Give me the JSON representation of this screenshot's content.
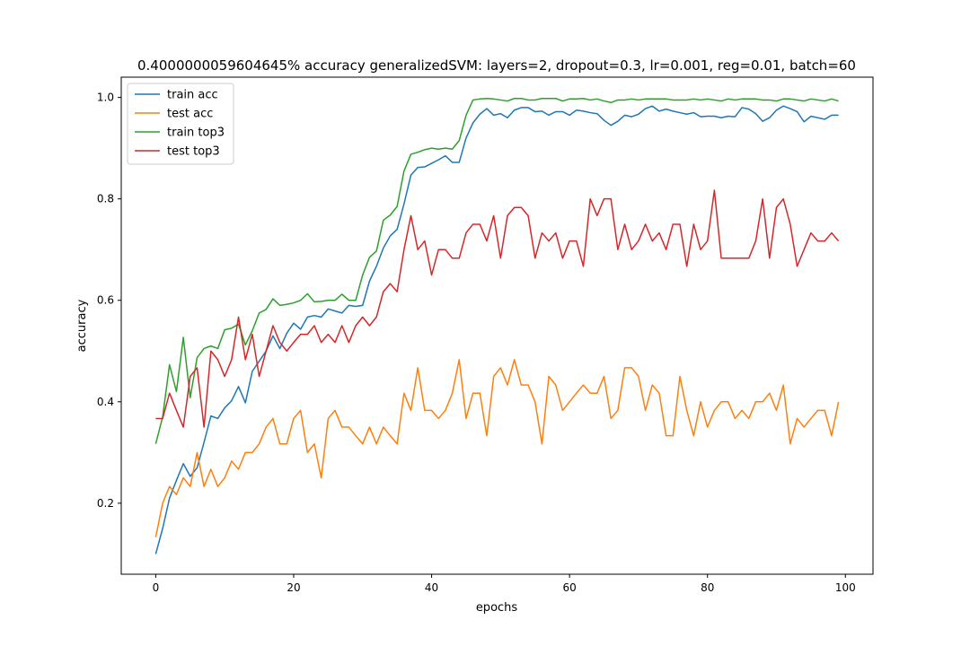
{
  "chart_data": {
    "type": "line",
    "title": "0.4000000059604645% accuracy generalizedSVM: layers=2, dropout=0.3, lr=0.001, reg=0.01, batch=60",
    "xlabel": "epochs",
    "ylabel": "accuracy",
    "xlim": [
      -5,
      104
    ],
    "ylim": [
      0.06,
      1.04
    ],
    "xticks": [
      0,
      20,
      40,
      60,
      80,
      100
    ],
    "yticks": [
      0.2,
      0.4,
      0.6,
      0.8,
      1.0
    ],
    "xtick_labels": [
      "0",
      "20",
      "40",
      "60",
      "80",
      "100"
    ],
    "ytick_labels": [
      "0.2",
      "0.4",
      "0.6",
      "0.8",
      "1.0"
    ],
    "grid": false,
    "legend_position": "top-left",
    "series": [
      {
        "name": "train acc",
        "color": "#1f77b4",
        "values": [
          0.1,
          0.15,
          0.21,
          0.245,
          0.278,
          0.253,
          0.27,
          0.32,
          0.372,
          0.367,
          0.388,
          0.402,
          0.43,
          0.398,
          0.46,
          0.48,
          0.5,
          0.53,
          0.505,
          0.535,
          0.555,
          0.543,
          0.567,
          0.57,
          0.567,
          0.583,
          0.579,
          0.575,
          0.59,
          0.588,
          0.59,
          0.638,
          0.667,
          0.703,
          0.727,
          0.74,
          0.79,
          0.847,
          0.862,
          0.863,
          0.87,
          0.877,
          0.885,
          0.872,
          0.872,
          0.92,
          0.95,
          0.967,
          0.978,
          0.965,
          0.968,
          0.96,
          0.975,
          0.98,
          0.98,
          0.972,
          0.973,
          0.965,
          0.972,
          0.972,
          0.965,
          0.975,
          0.973,
          0.97,
          0.968,
          0.955,
          0.945,
          0.953,
          0.965,
          0.962,
          0.967,
          0.978,
          0.983,
          0.973,
          0.977,
          0.973,
          0.97,
          0.967,
          0.97,
          0.962,
          0.963,
          0.963,
          0.96,
          0.963,
          0.962,
          0.98,
          0.977,
          0.968,
          0.953,
          0.96,
          0.975,
          0.983,
          0.978,
          0.972,
          0.952,
          0.963,
          0.96,
          0.957,
          0.965,
          0.965
        ]
      },
      {
        "name": "test acc",
        "color": "#ff7f0e",
        "values": [
          0.133,
          0.2,
          0.233,
          0.217,
          0.25,
          0.233,
          0.3,
          0.233,
          0.267,
          0.233,
          0.25,
          0.283,
          0.267,
          0.3,
          0.3,
          0.317,
          0.35,
          0.367,
          0.317,
          0.317,
          0.367,
          0.383,
          0.3,
          0.317,
          0.25,
          0.367,
          0.383,
          0.35,
          0.35,
          0.333,
          0.317,
          0.35,
          0.317,
          0.35,
          0.333,
          0.317,
          0.417,
          0.383,
          0.467,
          0.383,
          0.383,
          0.367,
          0.383,
          0.417,
          0.483,
          0.367,
          0.417,
          0.417,
          0.333,
          0.45,
          0.467,
          0.433,
          0.483,
          0.433,
          0.433,
          0.4,
          0.317,
          0.45,
          0.433,
          0.383,
          0.4,
          0.417,
          0.433,
          0.417,
          0.417,
          0.45,
          0.367,
          0.383,
          0.467,
          0.467,
          0.45,
          0.383,
          0.433,
          0.417,
          0.333,
          0.333,
          0.45,
          0.383,
          0.333,
          0.4,
          0.35,
          0.383,
          0.4,
          0.4,
          0.367,
          0.383,
          0.367,
          0.4,
          0.4,
          0.417,
          0.383,
          0.433,
          0.317,
          0.367,
          0.35,
          0.367,
          0.383,
          0.383,
          0.333,
          0.4
        ]
      },
      {
        "name": "train top3",
        "color": "#2ca02c",
        "values": [
          0.317,
          0.37,
          0.473,
          0.42,
          0.527,
          0.408,
          0.487,
          0.505,
          0.51,
          0.505,
          0.542,
          0.545,
          0.553,
          0.512,
          0.54,
          0.575,
          0.582,
          0.603,
          0.59,
          0.592,
          0.595,
          0.6,
          0.613,
          0.597,
          0.598,
          0.6,
          0.6,
          0.612,
          0.6,
          0.6,
          0.65,
          0.685,
          0.697,
          0.758,
          0.768,
          0.785,
          0.855,
          0.888,
          0.892,
          0.897,
          0.9,
          0.898,
          0.9,
          0.898,
          0.915,
          0.965,
          0.995,
          0.997,
          0.998,
          0.997,
          0.995,
          0.993,
          0.998,
          0.998,
          0.995,
          0.995,
          0.998,
          0.998,
          0.998,
          0.993,
          0.997,
          0.997,
          0.998,
          0.995,
          0.997,
          0.993,
          0.99,
          0.995,
          0.995,
          0.997,
          0.995,
          0.997,
          0.997,
          0.997,
          0.997,
          0.995,
          0.995,
          0.995,
          0.997,
          0.995,
          0.997,
          0.995,
          0.993,
          0.997,
          0.995,
          0.997,
          0.997,
          0.997,
          0.995,
          0.995,
          0.993,
          0.997,
          0.997,
          0.995,
          0.993,
          0.997,
          0.995,
          0.993,
          0.997,
          0.993
        ]
      },
      {
        "name": "test top3",
        "color": "#d62728",
        "values": [
          0.367,
          0.367,
          0.417,
          0.383,
          0.35,
          0.45,
          0.467,
          0.35,
          0.5,
          0.483,
          0.45,
          0.483,
          0.567,
          0.483,
          0.533,
          0.45,
          0.5,
          0.55,
          0.517,
          0.5,
          0.517,
          0.533,
          0.533,
          0.55,
          0.517,
          0.533,
          0.517,
          0.55,
          0.517,
          0.55,
          0.567,
          0.55,
          0.567,
          0.617,
          0.633,
          0.617,
          0.7,
          0.767,
          0.7,
          0.717,
          0.65,
          0.7,
          0.7,
          0.683,
          0.683,
          0.733,
          0.75,
          0.75,
          0.717,
          0.767,
          0.683,
          0.767,
          0.783,
          0.783,
          0.767,
          0.683,
          0.733,
          0.717,
          0.733,
          0.683,
          0.717,
          0.717,
          0.667,
          0.8,
          0.767,
          0.8,
          0.8,
          0.7,
          0.75,
          0.7,
          0.717,
          0.75,
          0.717,
          0.733,
          0.7,
          0.75,
          0.75,
          0.667,
          0.75,
          0.7,
          0.717,
          0.817,
          0.683,
          0.683,
          0.683,
          0.683,
          0.683,
          0.717,
          0.8,
          0.683,
          0.783,
          0.8,
          0.75,
          0.667,
          0.7,
          0.733,
          0.717,
          0.717,
          0.733,
          0.717
        ]
      }
    ]
  }
}
